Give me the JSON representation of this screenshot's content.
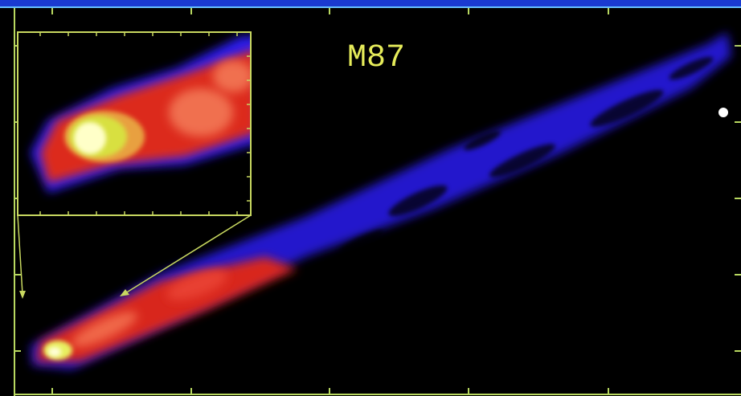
{
  "image": {
    "title": "M87"
  }
}
